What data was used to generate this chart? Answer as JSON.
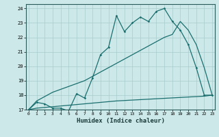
{
  "xlabel": "Humidex (Indice chaleur)",
  "background_color": "#cce8e8",
  "grid_color": "#a8cccc",
  "line_color": "#1a6e6e",
  "xticks": [
    0,
    1,
    2,
    3,
    4,
    5,
    6,
    7,
    8,
    9,
    10,
    11,
    12,
    13,
    14,
    15,
    16,
    17,
    18,
    19,
    20,
    21,
    22,
    23
  ],
  "yticks": [
    17,
    18,
    19,
    20,
    21,
    22,
    23,
    24
  ],
  "s1_x": [
    0,
    1,
    2,
    3,
    4,
    5,
    6,
    7,
    8,
    9,
    10,
    11,
    12,
    13,
    14,
    15,
    16,
    17,
    18,
    19,
    20,
    21,
    22,
    23
  ],
  "s1_y": [
    17.0,
    17.5,
    17.4,
    17.1,
    17.1,
    16.9,
    18.1,
    17.8,
    19.2,
    20.8,
    21.3,
    23.5,
    22.4,
    23.0,
    23.4,
    23.1,
    23.8,
    24.0,
    23.1,
    22.5,
    21.5,
    19.9,
    18.0,
    18.0
  ],
  "s2_x": [
    0,
    1,
    2,
    3,
    4,
    5,
    6,
    7,
    8,
    9,
    10,
    11,
    12,
    13,
    14,
    15,
    16,
    17,
    18,
    19,
    20,
    21,
    22,
    23
  ],
  "s2_y": [
    17.0,
    17.6,
    17.9,
    18.2,
    18.4,
    18.6,
    18.8,
    19.0,
    19.3,
    19.6,
    19.9,
    20.2,
    20.5,
    20.8,
    21.1,
    21.4,
    21.7,
    22.0,
    22.2,
    23.1,
    22.5,
    21.5,
    19.9,
    18.0
  ],
  "s3_x": [
    0,
    1,
    2,
    3,
    4,
    5,
    6,
    7,
    8,
    9,
    10,
    11,
    12,
    13,
    14,
    15,
    16,
    17,
    18,
    19,
    20,
    21,
    22,
    23
  ],
  "s3_y": [
    17.0,
    17.1,
    17.15,
    17.2,
    17.25,
    17.3,
    17.35,
    17.4,
    17.45,
    17.5,
    17.55,
    17.6,
    17.63,
    17.66,
    17.69,
    17.72,
    17.75,
    17.78,
    17.81,
    17.84,
    17.87,
    17.9,
    17.93,
    18.0
  ]
}
